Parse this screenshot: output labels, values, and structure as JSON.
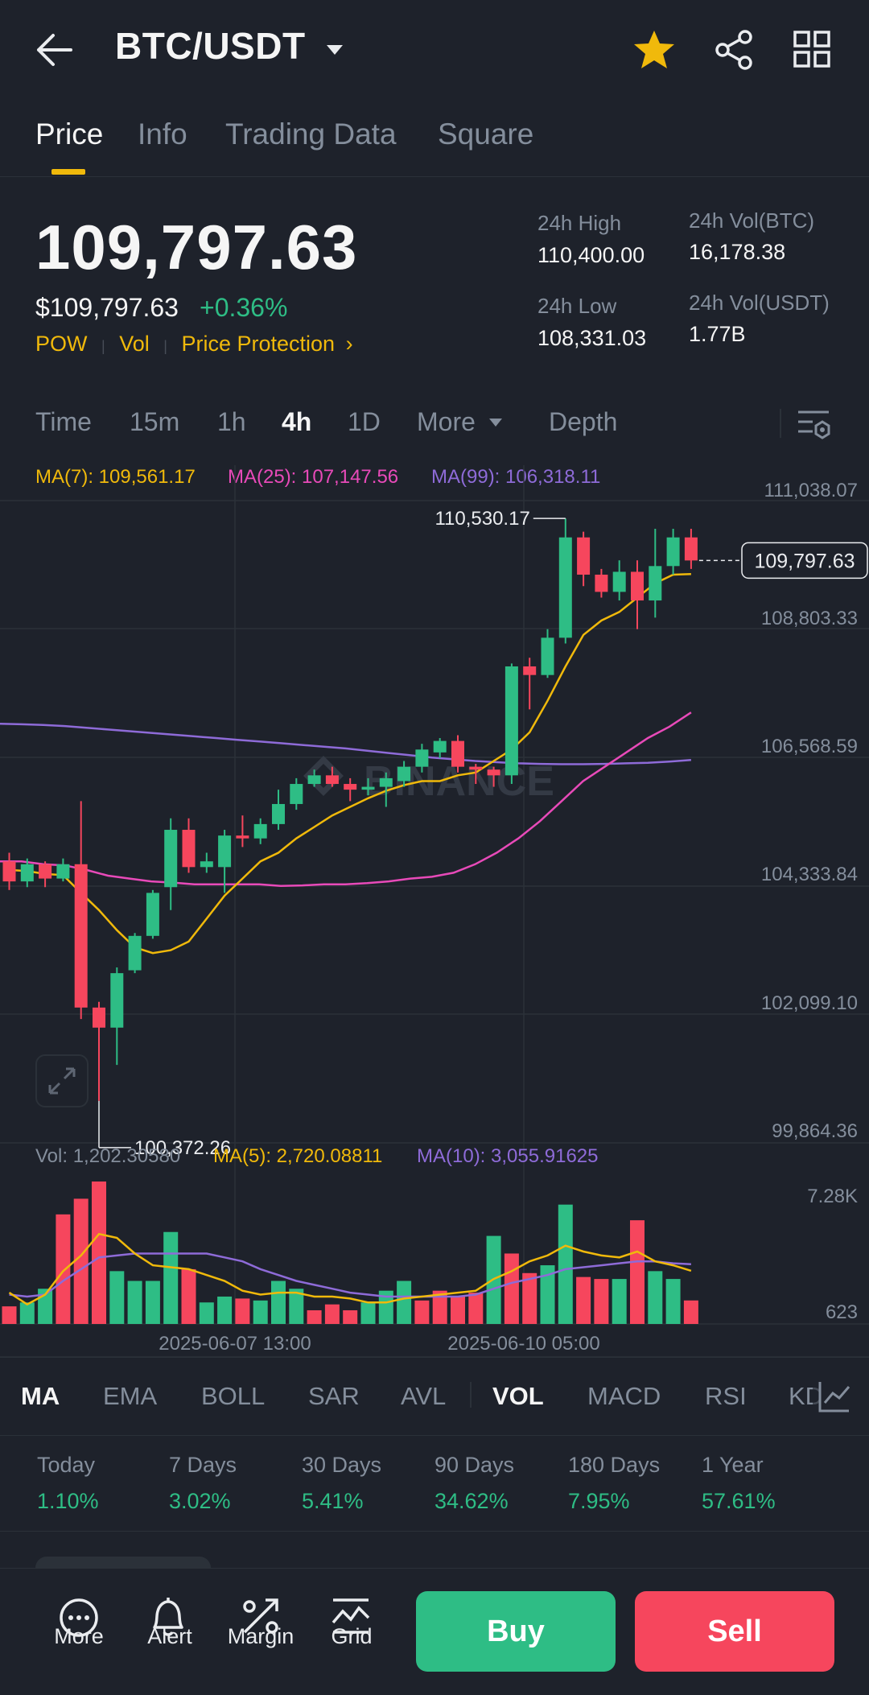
{
  "header": {
    "pair": "BTC/USDT",
    "icons": [
      "back-arrow-icon",
      "caret-down-icon",
      "star-icon",
      "share-icon",
      "grid-icon"
    ]
  },
  "tabs": [
    "Price",
    "Info",
    "Trading Data",
    "Square"
  ],
  "price": {
    "last": "109,797.63",
    "usd": "$109,797.63",
    "change": "+0.36%",
    "tags": [
      "POW",
      "Vol",
      "Price Protection"
    ]
  },
  "stats": {
    "high_label": "24h High",
    "high": "110,400.00",
    "low_label": "24h Low",
    "low": "108,331.03",
    "volbtc_label": "24h Vol(BTC)",
    "volbtc": "16,178.38",
    "volusdt_label": "24h Vol(USDT)",
    "volusdt": "1.77B"
  },
  "intervals": [
    "Time",
    "15m",
    "1h",
    "4h",
    "1D",
    "More",
    "Depth"
  ],
  "active_interval": "4h",
  "ma_labels": {
    "ma7": "MA(7): 109,561.17",
    "ma25": "MA(25): 107,147.56",
    "ma99": "MA(99): 106,318.11"
  },
  "vol_labels": {
    "vol": "Vol: 1,202.30580",
    "ma5": "MA(5): 2,720.08811",
    "ma10": "MA(10): 3,055.91625"
  },
  "watermark": "BINANCE",
  "chart_data": {
    "type": "candlestick",
    "price_axis_ticks": [
      "111,038.07",
      "108,803.33",
      "106,568.59",
      "104,333.84",
      "102,099.10",
      "99,864.36"
    ],
    "price_range": [
      99864.36,
      111038.07
    ],
    "current_price_label": "109,797.63",
    "high_marker": "110,530.17",
    "low_marker": "100,372.26",
    "volume_axis_ticks": [
      "7.28K",
      "623"
    ],
    "volume_range": [
      623,
      7280
    ],
    "x_ticks": [
      "2025-06-07 13:00",
      "2025-06-10 05:00"
    ],
    "candles": [
      {
        "o": 104550,
        "c": 104200,
        "h": 104700,
        "l": 104050
      },
      {
        "o": 104200,
        "c": 104500,
        "h": 104600,
        "l": 104100
      },
      {
        "o": 104500,
        "c": 104250,
        "h": 104550,
        "l": 104100
      },
      {
        "o": 104250,
        "c": 104500,
        "h": 104600,
        "l": 104200
      },
      {
        "o": 104500,
        "c": 102000,
        "h": 105600,
        "l": 101800
      },
      {
        "o": 102000,
        "c": 101650,
        "h": 102100,
        "l": 100372.26
      },
      {
        "o": 101650,
        "c": 102600,
        "h": 102700,
        "l": 101000
      },
      {
        "o": 102650,
        "c": 103250,
        "h": 103300,
        "l": 102600
      },
      {
        "o": 103250,
        "c": 104000,
        "h": 104050,
        "l": 103200
      },
      {
        "o": 104100,
        "c": 105100,
        "h": 105300,
        "l": 103700
      },
      {
        "o": 105100,
        "c": 104450,
        "h": 105300,
        "l": 104350
      },
      {
        "o": 104450,
        "c": 104550,
        "h": 104700,
        "l": 104350
      },
      {
        "o": 104450,
        "c": 105000,
        "h": 105100,
        "l": 104000
      },
      {
        "o": 105000,
        "c": 104950,
        "h": 105350,
        "l": 104800
      },
      {
        "o": 104950,
        "c": 105200,
        "h": 105300,
        "l": 104850
      },
      {
        "o": 105200,
        "c": 105550,
        "h": 105800,
        "l": 105100
      },
      {
        "o": 105550,
        "c": 105900,
        "h": 106000,
        "l": 105450
      },
      {
        "o": 105900,
        "c": 106050,
        "h": 106150,
        "l": 105850
      },
      {
        "o": 106050,
        "c": 105900,
        "h": 106200,
        "l": 105850
      },
      {
        "o": 105900,
        "c": 105800,
        "h": 106000,
        "l": 105600
      },
      {
        "o": 105800,
        "c": 105850,
        "h": 106000,
        "l": 105700
      },
      {
        "o": 105850,
        "c": 106000,
        "h": 106100,
        "l": 105500
      },
      {
        "o": 105950,
        "c": 106200,
        "h": 106300,
        "l": 105850
      },
      {
        "o": 106200,
        "c": 106500,
        "h": 106600,
        "l": 106100
      },
      {
        "o": 106450,
        "c": 106650,
        "h": 106700,
        "l": 106350
      },
      {
        "o": 106650,
        "c": 106200,
        "h": 106750,
        "l": 106100
      },
      {
        "o": 106200,
        "c": 106150,
        "h": 106250,
        "l": 105900
      },
      {
        "o": 106150,
        "c": 106050,
        "h": 106200,
        "l": 105850
      },
      {
        "o": 106050,
        "c": 107950,
        "h": 108000,
        "l": 105900
      },
      {
        "o": 107950,
        "c": 107800,
        "h": 108100,
        "l": 107200
      },
      {
        "o": 107800,
        "c": 108450,
        "h": 108600,
        "l": 107750
      },
      {
        "o": 108450,
        "c": 110200,
        "h": 110530.17,
        "l": 108350
      },
      {
        "o": 110200,
        "c": 109550,
        "h": 110300,
        "l": 109350
      },
      {
        "o": 109550,
        "c": 109250,
        "h": 109650,
        "l": 109150
      },
      {
        "o": 109250,
        "c": 109600,
        "h": 109800,
        "l": 109100
      },
      {
        "o": 109600,
        "c": 109100,
        "h": 109800,
        "l": 108600
      },
      {
        "o": 109100,
        "c": 109700,
        "h": 110350,
        "l": 108800
      },
      {
        "o": 109700,
        "c": 110200,
        "h": 110350,
        "l": 109550
      },
      {
        "o": 110200,
        "c": 109797.63,
        "h": 110350,
        "l": 109650
      }
    ],
    "ma7": [
      104400,
      104380,
      104330,
      104310,
      104000,
      103700,
      103350,
      103050,
      102950,
      103000,
      103150,
      103550,
      103950,
      104250,
      104550,
      104700,
      104950,
      105150,
      105350,
      105500,
      105650,
      105780,
      105880,
      105950,
      105950,
      106050,
      106100,
      106300,
      106500,
      106800,
      107350,
      107950,
      108500,
      108750,
      108900,
      109150,
      109400,
      109550,
      109561.17
    ],
    "ma25": [
      104550,
      104550,
      104500,
      104480,
      104400,
      104300,
      104250,
      104200,
      104180,
      104150,
      104150,
      104150,
      104150,
      104120,
      104130,
      104150,
      104150,
      104170,
      104200,
      104250,
      104280,
      104350,
      104500,
      104700,
      104950,
      105250,
      105600,
      105950,
      106200,
      106450,
      106700,
      106900,
      107147.56
    ],
    "ma99": [
      106950,
      106940,
      106930,
      106910,
      106880,
      106850,
      106820,
      106790,
      106760,
      106730,
      106700,
      106670,
      106640,
      106610,
      106580,
      106550,
      106520,
      106480,
      106440,
      106400,
      106360,
      106330,
      106300,
      106280,
      106260,
      106250,
      106245,
      106245,
      106250,
      106260,
      106270,
      106290,
      106318.11
    ],
    "volumes": [
      {
        "v": 900,
        "up": false
      },
      {
        "v": 1100,
        "up": true
      },
      {
        "v": 1800,
        "up": true
      },
      {
        "v": 5600,
        "up": false
      },
      {
        "v": 6400,
        "up": false
      },
      {
        "v": 7280,
        "up": false
      },
      {
        "v": 2700,
        "up": true
      },
      {
        "v": 2200,
        "up": true
      },
      {
        "v": 2200,
        "up": true
      },
      {
        "v": 4700,
        "up": true
      },
      {
        "v": 2800,
        "up": false
      },
      {
        "v": 1100,
        "up": true
      },
      {
        "v": 1400,
        "up": true
      },
      {
        "v": 1300,
        "up": false
      },
      {
        "v": 1200,
        "up": true
      },
      {
        "v": 2200,
        "up": true
      },
      {
        "v": 1800,
        "up": true
      },
      {
        "v": 700,
        "up": false
      },
      {
        "v": 1000,
        "up": false
      },
      {
        "v": 700,
        "up": false
      },
      {
        "v": 1100,
        "up": true
      },
      {
        "v": 1700,
        "up": true
      },
      {
        "v": 2200,
        "up": true
      },
      {
        "v": 1200,
        "up": false
      },
      {
        "v": 1700,
        "up": false
      },
      {
        "v": 1400,
        "up": false
      },
      {
        "v": 1600,
        "up": false
      },
      {
        "v": 4500,
        "up": true
      },
      {
        "v": 3600,
        "up": false
      },
      {
        "v": 2600,
        "up": false
      },
      {
        "v": 3000,
        "up": true
      },
      {
        "v": 6100,
        "up": true
      },
      {
        "v": 2400,
        "up": false
      },
      {
        "v": 2300,
        "up": false
      },
      {
        "v": 2300,
        "up": true
      },
      {
        "v": 5300,
        "up": false
      },
      {
        "v": 2700,
        "up": true
      },
      {
        "v": 2300,
        "up": true
      },
      {
        "v": 1202.3,
        "up": false
      }
    ],
    "vol_ma5": [
      1600,
      1000,
      1500,
      2700,
      3500,
      4600,
      4400,
      3600,
      3000,
      2900,
      2800,
      2500,
      2200,
      1700,
      1500,
      1600,
      1600,
      1400,
      1400,
      1300,
      1100,
      1100,
      1300,
      1400,
      1500,
      1600,
      1700,
      2300,
      2700,
      3200,
      3500,
      4000,
      3700,
      3500,
      3400,
      3700,
      3200,
      3000,
      2720.09
    ],
    "vol_ma10": [
      1500,
      1400,
      1500,
      2200,
      2800,
      3400,
      3500,
      3600,
      3600,
      3600,
      3600,
      3600,
      3400,
      3200,
      2800,
      2500,
      2200,
      2000,
      1800,
      1600,
      1500,
      1400,
      1400,
      1400,
      1400,
      1400,
      1500,
      1800,
      2100,
      2300,
      2500,
      2800,
      2900,
      3000,
      3100,
      3200,
      3200,
      3100,
      3055.92
    ]
  },
  "indicators": [
    "MA",
    "EMA",
    "BOLL",
    "SAR",
    "AVL",
    "VOL",
    "MACD",
    "RSI",
    "KDJ"
  ],
  "active_indicators": [
    "MA",
    "VOL"
  ],
  "performance": [
    {
      "label": "Today",
      "value": "1.10%"
    },
    {
      "label": "7 Days",
      "value": "3.02%"
    },
    {
      "label": "30 Days",
      "value": "5.41%"
    },
    {
      "label": "90 Days",
      "value": "34.62%"
    },
    {
      "label": "180 Days",
      "value": "7.95%"
    },
    {
      "label": "1 Year",
      "value": "57.61%"
    }
  ],
  "bottom": {
    "more": "More",
    "alert": "Alert",
    "margin": "Margin",
    "grid": "Grid",
    "buy": "Buy",
    "sell": "Sell"
  },
  "colors": {
    "up": "#2ebd85",
    "down": "#f6465d",
    "ma7": "#f0b90b",
    "ma25": "#e84ab9",
    "ma99": "#8e6bd8",
    "accent": "#f0b90b"
  }
}
